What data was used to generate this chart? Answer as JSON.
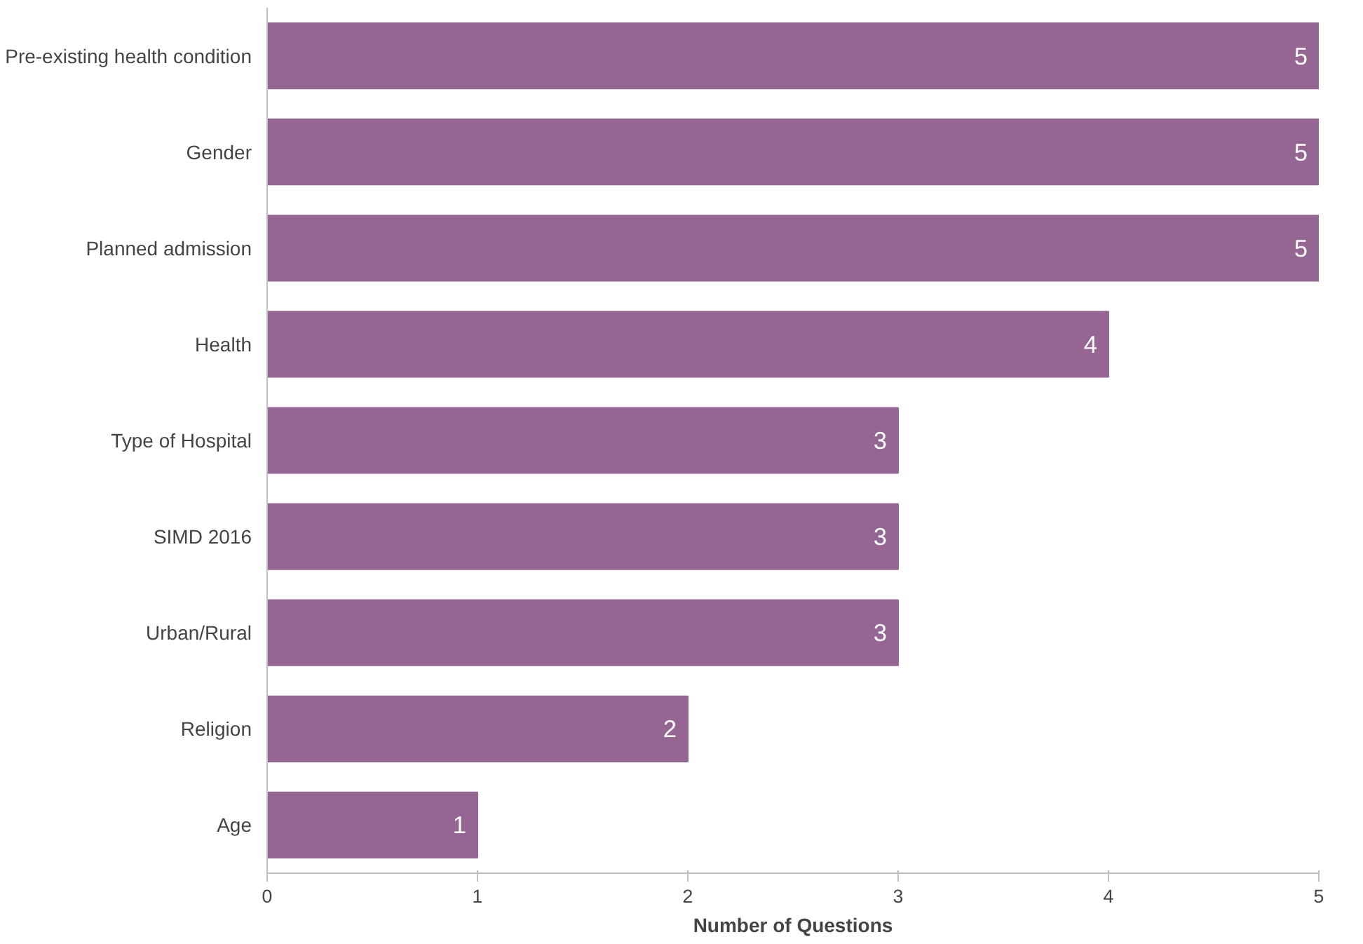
{
  "chart_data": {
    "type": "bar",
    "orientation": "horizontal",
    "xlabel": "Number of Questions",
    "categories": [
      "Pre-existing health condition",
      "Gender",
      "Planned admission",
      "Health",
      "Type of Hospital",
      "SIMD 2016",
      "Urban/Rural",
      "Religion",
      "Age"
    ],
    "values": [
      5,
      5,
      5,
      4,
      3,
      3,
      3,
      2,
      1
    ],
    "color": "#956693",
    "xlim": [
      0,
      5
    ],
    "xticks": [
      0,
      1,
      2,
      3,
      4,
      5
    ],
    "grid": false,
    "data_labels": true
  }
}
